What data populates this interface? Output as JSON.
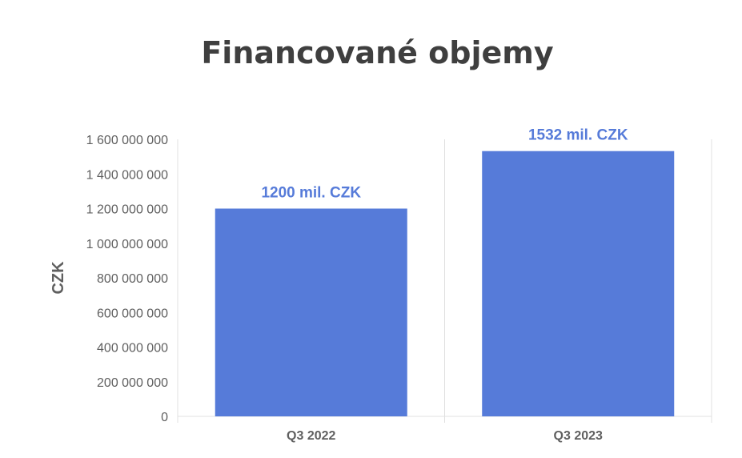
{
  "chart_data": {
    "type": "bar",
    "title": "Financované objemy",
    "xlabel": "",
    "ylabel": "CZK",
    "categories": [
      "Q3 2022",
      "Q3 2023"
    ],
    "values": [
      1200000000,
      1532000000
    ],
    "data_labels": [
      "1200 mil. CZK",
      "1532 mil. CZK"
    ],
    "ylim": [
      0,
      1600000000
    ],
    "yticks": [
      0,
      200000000,
      400000000,
      600000000,
      800000000,
      1000000000,
      1200000000,
      1400000000,
      1600000000
    ],
    "ytick_labels": [
      "0",
      "200 000 000",
      "400 000 000",
      "600 000 000",
      "800 000 000",
      "1 000 000 000",
      "1 200 000 000",
      "1 400 000 000",
      "1 600 000 000"
    ],
    "grid": "vertical category separators",
    "legend": "none",
    "colors": {
      "bar": "#567bd9",
      "data_label": "#567bd9",
      "axis_text": "#5f5f5f",
      "title": "#3f3f3f",
      "grid": "#e0e0e0"
    }
  }
}
